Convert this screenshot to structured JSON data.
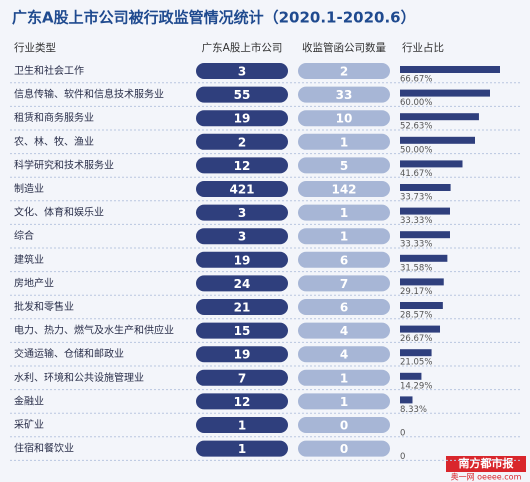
{
  "chart_data": {
    "type": "bar",
    "title": "广东A股上市公司被行政监管情况统计（2020.1-2020.6）",
    "category_label": "行业类型",
    "categories": [
      "卫生和社会工作",
      "信息传输、软件和信息技术服务业",
      "租赁和商务服务业",
      "农、林、牧、渔业",
      "科学研究和技术服务业",
      "制造业",
      "文化、体育和娱乐业",
      "综合",
      "建筑业",
      "房地产业",
      "批发和零售业",
      "电力、热力、燃气及水生产和供应业",
      "交通运输、仓储和邮政业",
      "水利、环境和公共设施管理业",
      "金融业",
      "采矿业",
      "住宿和餐饮业"
    ],
    "series": [
      {
        "name": "广东A股上市公司",
        "color": "#2f3f7d",
        "values": [
          3,
          55,
          19,
          2,
          12,
          421,
          3,
          3,
          19,
          24,
          21,
          15,
          19,
          7,
          12,
          1,
          1
        ]
      },
      {
        "name": "收监管函公司数量",
        "color": "#a7b6d6",
        "values": [
          2,
          33,
          10,
          1,
          5,
          142,
          1,
          1,
          6,
          7,
          6,
          4,
          4,
          1,
          1,
          0,
          0
        ]
      },
      {
        "name": "行业占比",
        "color": "#2f3f7d",
        "values": [
          66.67,
          60.0,
          52.63,
          50.0,
          41.67,
          33.73,
          33.33,
          33.33,
          31.58,
          29.17,
          28.57,
          26.67,
          21.05,
          14.29,
          8.33,
          0,
          0
        ],
        "value_labels": [
          "66.67%",
          "60.00%",
          "52.63%",
          "50.00%",
          "41.67%",
          "33.73%",
          "33.33%",
          "33.33%",
          "31.58%",
          "29.17%",
          "28.57%",
          "26.67%",
          "21.05%",
          "14.29%",
          "8.33%",
          "0",
          "0"
        ]
      }
    ],
    "source": [
      "南方都市报",
      "奥一网 oeeee.com"
    ]
  }
}
